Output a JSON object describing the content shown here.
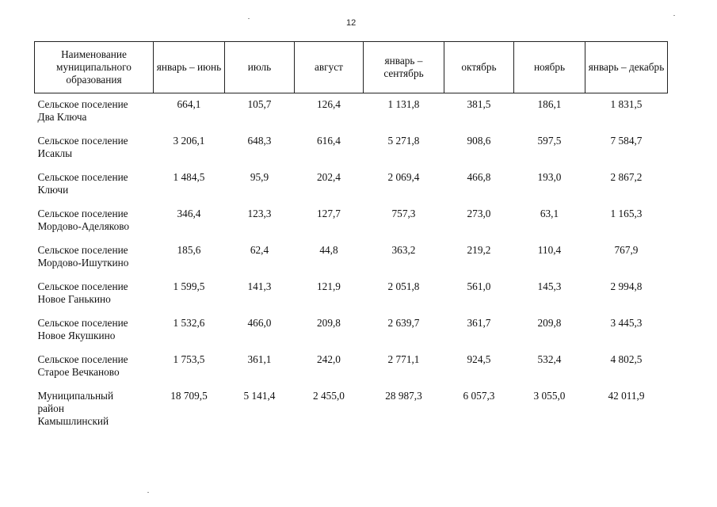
{
  "page_number": "12",
  "table": {
    "headers": [
      "Наименование муниципального образования",
      "январь – июнь",
      "июль",
      "август",
      "январь – сентябрь",
      "октябрь",
      "ноябрь",
      "январь – декабрь"
    ],
    "rows": [
      {
        "name": [
          "Сельское поселение",
          "Два Ключа"
        ],
        "values": [
          "664,1",
          "105,7",
          "126,4",
          "1 131,8",
          "381,5",
          "186,1",
          "1 831,5"
        ]
      },
      {
        "name": [
          "Сельское поселение",
          "Исаклы"
        ],
        "values": [
          "3 206,1",
          "648,3",
          "616,4",
          "5 271,8",
          "908,6",
          "597,5",
          "7 584,7"
        ]
      },
      {
        "name": [
          "Сельское поселение",
          "Ключи"
        ],
        "values": [
          "1 484,5",
          "95,9",
          "202,4",
          "2 069,4",
          "466,8",
          "193,0",
          "2 867,2"
        ]
      },
      {
        "name": [
          "Сельское поселение",
          "Мордово-Аделяково"
        ],
        "values": [
          "346,4",
          "123,3",
          "127,7",
          "757,3",
          "273,0",
          "63,1",
          "1 165,3"
        ]
      },
      {
        "name": [
          "Сельское поселение",
          "Мордово-Ишуткино"
        ],
        "values": [
          "185,6",
          "62,4",
          "44,8",
          "363,2",
          "219,2",
          "110,4",
          "767,9"
        ]
      },
      {
        "name": [
          "Сельское поселение",
          "Новое Ганькино"
        ],
        "values": [
          "1 599,5",
          "141,3",
          "121,9",
          "2 051,8",
          "561,0",
          "145,3",
          "2 994,8"
        ]
      },
      {
        "name": [
          "Сельское поселение",
          "Новое Якушкино"
        ],
        "values": [
          "1 532,6",
          "466,0",
          "209,8",
          "2 639,7",
          "361,7",
          "209,8",
          "3 445,3"
        ]
      },
      {
        "name": [
          "Сельское поселение",
          "Старое Вечканово"
        ],
        "values": [
          "1 753,5",
          "361,1",
          "242,0",
          "2 771,1",
          "924,5",
          "532,4",
          "4 802,5"
        ]
      },
      {
        "name": [
          "Муниципальный",
          "район",
          "Камышлинский"
        ],
        "values": [
          "18 709,5",
          "5 141,4",
          "2 455,0",
          "28 987,3",
          "6 057,3",
          "3 055,0",
          "42 011,9"
        ]
      }
    ]
  }
}
